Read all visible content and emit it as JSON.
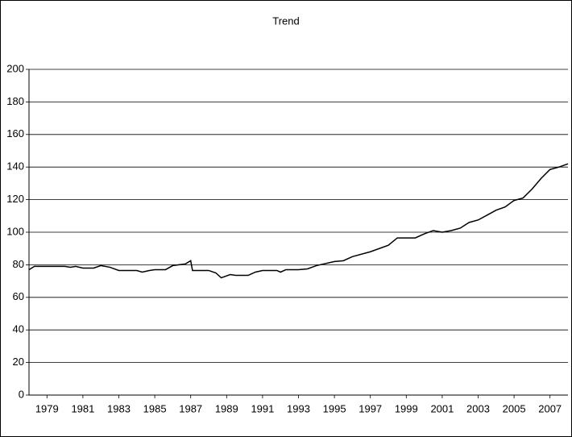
{
  "chart_data": {
    "type": "line",
    "title": "Trend",
    "x": [
      1978.0,
      1978.3,
      1979.0,
      1980.0,
      1980.3,
      1980.6,
      1981.0,
      1981.6,
      1982.0,
      1982.5,
      1983.0,
      1984.0,
      1984.3,
      1984.7,
      1985.0,
      1985.6,
      1986.0,
      1986.7,
      1987.0,
      1987.1,
      1988.0,
      1988.4,
      1988.7,
      1989.2,
      1989.5,
      1990.2,
      1990.6,
      1991.0,
      1991.8,
      1992.0,
      1992.3,
      1993.0,
      1993.5,
      1994.0,
      1995.0,
      1995.5,
      1996.0,
      1997.0,
      1998.0,
      1998.5,
      1999.5,
      2000.0,
      2000.5,
      2001.0,
      2001.5,
      2002.0,
      2002.5,
      2003.0,
      2003.5,
      2004.0,
      2004.5,
      2005.0,
      2005.5,
      2006.0,
      2006.5,
      2007.0,
      2007.5,
      2008.0
    ],
    "series": [
      {
        "name": "Trend",
        "color": "#000000",
        "values": [
          77,
          79,
          79,
          79,
          78.5,
          79,
          78,
          78,
          79.5,
          78.5,
          76.5,
          76.5,
          75.5,
          76.5,
          77,
          77,
          79.5,
          80.5,
          82.5,
          76.5,
          76.5,
          75,
          72,
          74,
          73.5,
          73.5,
          75.5,
          76.5,
          76.5,
          75.5,
          77,
          77,
          77.5,
          79.5,
          82,
          82.5,
          85,
          88,
          92,
          96.5,
          96.5,
          99,
          101,
          100,
          101,
          102.5,
          106,
          107.5,
          110.5,
          113.5,
          115.5,
          119.5,
          121,
          126.5,
          133,
          138.5,
          140,
          142
        ]
      }
    ],
    "xlim": [
      1978,
      2008
    ],
    "xticks": [
      1979,
      1981,
      1983,
      1985,
      1987,
      1989,
      1991,
      1993,
      1995,
      1997,
      1999,
      2001,
      2003,
      2005,
      2007
    ],
    "ylim": [
      0,
      200
    ],
    "yticks": [
      0,
      20,
      40,
      60,
      80,
      100,
      120,
      140,
      160,
      180,
      200
    ],
    "grid": true
  }
}
